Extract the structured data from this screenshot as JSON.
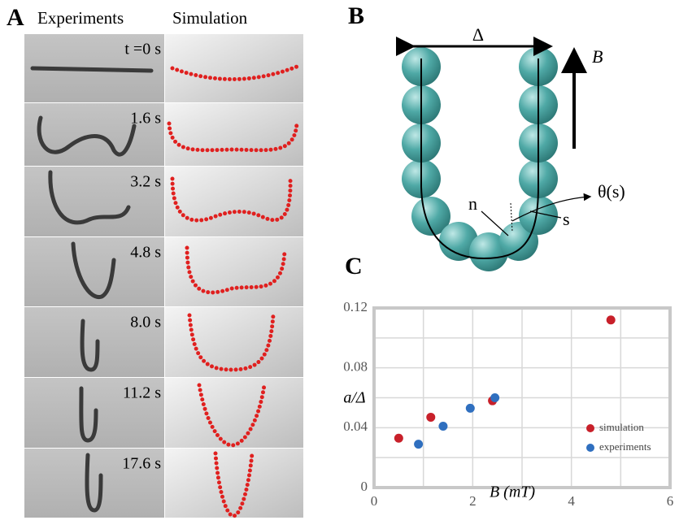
{
  "panel_a": {
    "label": "A",
    "columns": [
      "Experiments",
      "Simulation"
    ],
    "times": [
      "t =0 s",
      "1.6 s",
      "3.2 s",
      "4.8 s",
      "8.0 s",
      "11.2 s",
      "17.6 s"
    ]
  },
  "panel_b": {
    "label": "B",
    "spacing": "Δ",
    "field": "B",
    "angle": "θ(s)",
    "normal": "n",
    "arc": "s"
  },
  "panel_c_label": "C",
  "chart_data": {
    "type": "scatter",
    "x_label": "B (mT)",
    "y_label": "a/Δ",
    "xlim": [
      0,
      6
    ],
    "ylim": [
      0,
      0.12
    ],
    "xticks": [
      0,
      2,
      4,
      6
    ],
    "yticks": [
      0,
      0.04,
      0.08,
      0.12
    ],
    "x_gridlines": [
      1,
      2,
      3,
      4,
      5
    ],
    "y_gridlines": [
      0.02,
      0.04,
      0.06,
      0.08,
      0.1
    ],
    "legend": "lower right",
    "series": [
      {
        "name": "simulation",
        "color": "#c8202a",
        "x": [
          0.5,
          1.15,
          2.4,
          4.8
        ],
        "values": [
          0.033,
          0.047,
          0.058,
          0.112
        ]
      },
      {
        "name": "experiments",
        "color": "#2f6fbf",
        "x": [
          0.9,
          1.4,
          1.95,
          2.45
        ],
        "values": [
          0.029,
          0.041,
          0.053,
          0.06
        ]
      }
    ]
  }
}
